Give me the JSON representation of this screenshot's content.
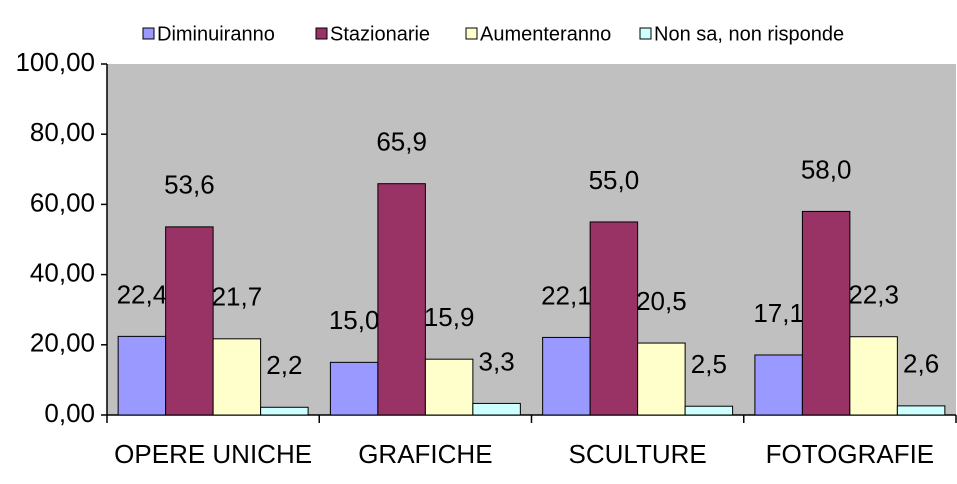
{
  "chart_data": {
    "type": "bar",
    "categories": [
      "OPERE UNICHE",
      "GRAFICHE",
      "SCULTURE",
      "FOTOGRAFIE"
    ],
    "series": [
      {
        "name": "Diminuiranno",
        "color": "#9999ff",
        "values": [
          22.4,
          15.0,
          22.1,
          17.1
        ],
        "value_labels": [
          "22,4",
          "15,0",
          "22,1",
          "17,1"
        ]
      },
      {
        "name": "Stazionarie",
        "color": "#993366",
        "values": [
          53.6,
          65.9,
          55.0,
          58.0
        ],
        "value_labels": [
          "53,6",
          "65,9",
          "55,0",
          "58,0"
        ]
      },
      {
        "name": "Aumenteranno",
        "color": "#ffffcc",
        "values": [
          21.7,
          15.9,
          20.5,
          22.3
        ],
        "value_labels": [
          "21,7",
          "15,9",
          "20,5",
          "22,3"
        ]
      },
      {
        "name": "Non sa, non risponde",
        "color": "#ccffff",
        "values": [
          2.2,
          3.3,
          2.5,
          2.6
        ],
        "value_labels": [
          "2,2",
          "3,3",
          "2,5",
          "2,6"
        ]
      }
    ],
    "ylim": [
      0,
      100
    ],
    "yticks": [
      {
        "value": 0,
        "label": "0,00"
      },
      {
        "value": 20,
        "label": "20,00"
      },
      {
        "value": 40,
        "label": "40,00"
      },
      {
        "value": 60,
        "label": "60,00"
      },
      {
        "value": 80,
        "label": "80,00"
      },
      {
        "value": 100,
        "label": "100,00"
      }
    ],
    "legend": "top",
    "background": "#c0c0c0"
  }
}
